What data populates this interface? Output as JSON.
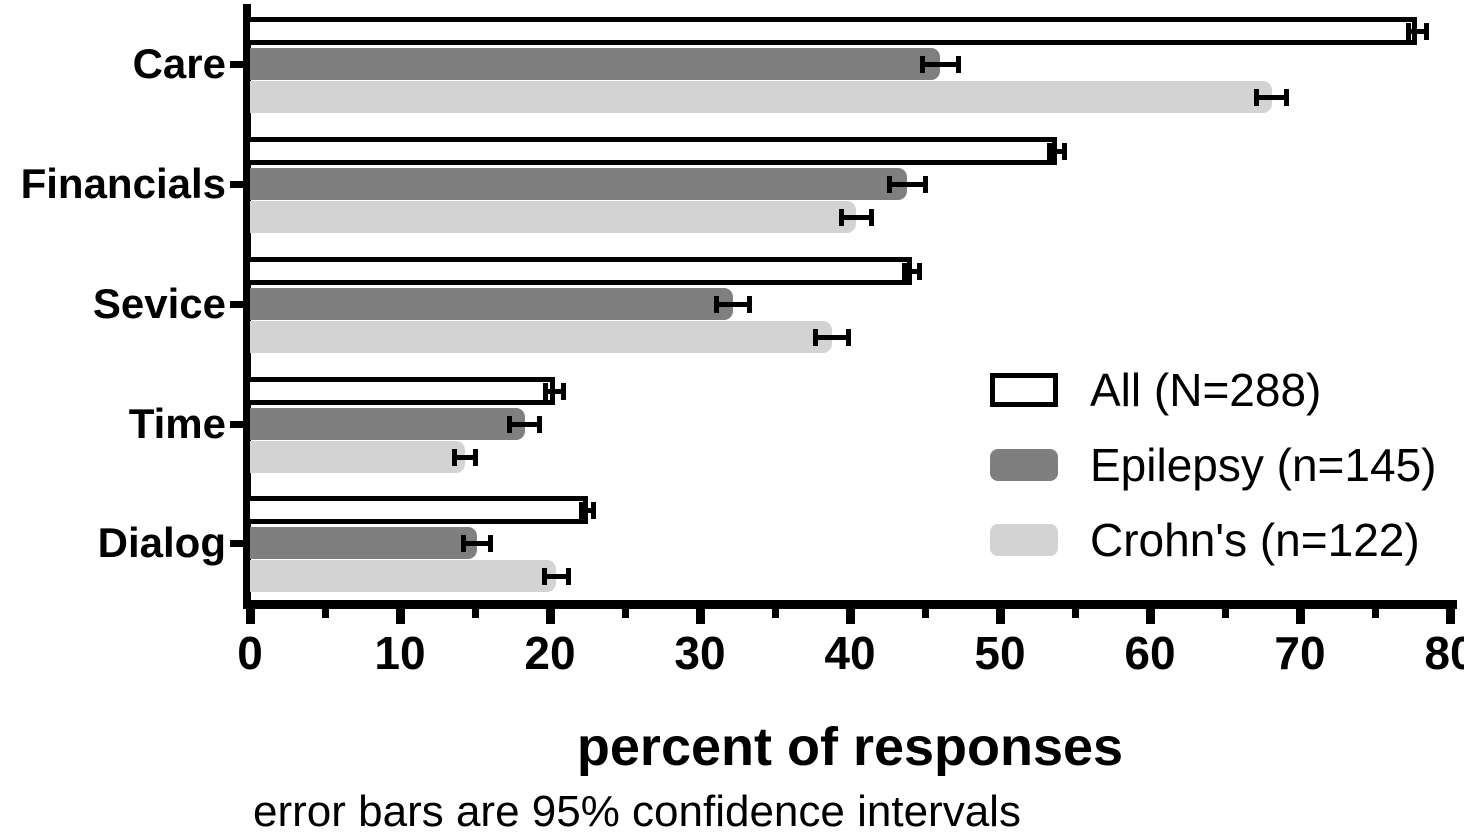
{
  "chart_data": {
    "type": "bar",
    "orientation": "horizontal",
    "title": "",
    "xlabel": "percent of responses",
    "caption": "error bars are 95% confidence intervals",
    "xlim": [
      0,
      80
    ],
    "xticks": [
      0,
      10,
      20,
      30,
      40,
      50,
      60,
      70,
      80
    ],
    "xticks_minor": [
      5,
      15,
      25,
      35,
      45,
      55,
      65,
      75
    ],
    "grid": false,
    "legend_position": "inside-right",
    "error_bars": "95% confidence intervals",
    "categories": [
      "Care",
      "Financials",
      "Sevice",
      "Time",
      "Dialog"
    ],
    "series": [
      {
        "name": "All (N=288)",
        "fill": "#ffffff",
        "stroke": "#000000",
        "values": [
          77.8,
          53.8,
          44.1,
          20.3,
          22.5
        ],
        "ci_half_width": [
          0.5,
          0.4,
          0.4,
          0.5,
          0.3
        ]
      },
      {
        "name": "Epilepsy (n=145)",
        "fill": "#7f7f7f",
        "stroke": null,
        "values": [
          46.0,
          43.8,
          32.2,
          18.3,
          15.1
        ],
        "ci_half_width": [
          1.1,
          1.1,
          1.0,
          0.9,
          0.8
        ]
      },
      {
        "name": "Crohn's (n=122)",
        "fill": "#d3d3d3",
        "stroke": null,
        "values": [
          68.1,
          40.4,
          38.8,
          14.3,
          20.4
        ],
        "ci_half_width": [
          0.9,
          0.9,
          1.0,
          0.6,
          0.7
        ]
      }
    ]
  }
}
